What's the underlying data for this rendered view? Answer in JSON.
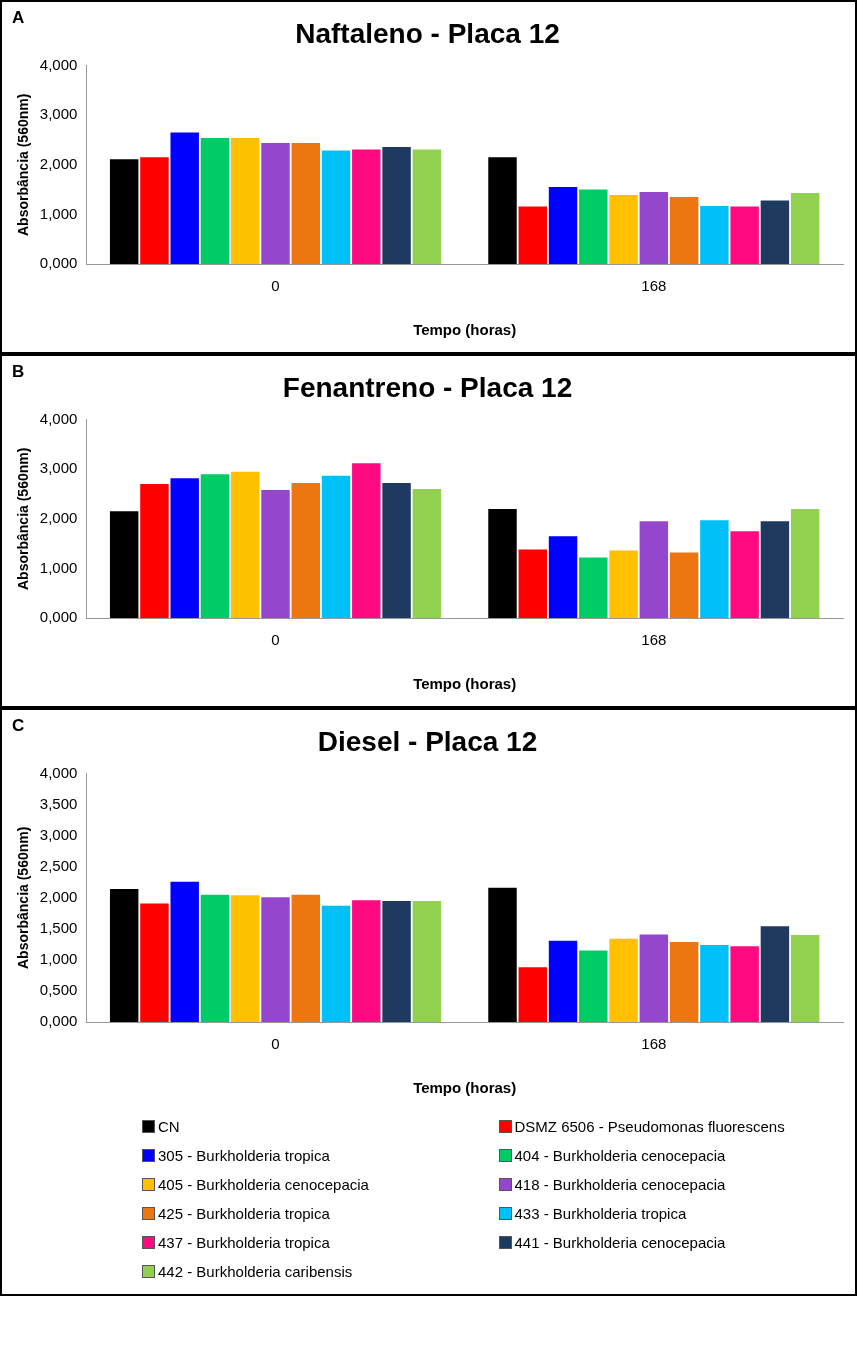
{
  "chart_data": [
    {
      "type": "bar",
      "title": "Naftaleno - Placa 12",
      "xlabel": "Tempo (horas)",
      "ylabel": "Absorbância (560nm)",
      "annotations": [
        "A"
      ],
      "categories": [
        "0",
        "168"
      ],
      "ylim": [
        0,
        4
      ],
      "yticks": [
        {
          "value": 0,
          "label": "0,000"
        },
        {
          "value": 1,
          "label": "1,000"
        },
        {
          "value": 2,
          "label": "2,000"
        },
        {
          "value": 3,
          "label": "3,000"
        },
        {
          "value": 4,
          "label": "4,000"
        }
      ],
      "grid": false,
      "series": [
        {
          "color": "#000000",
          "values": [
            2.11,
            2.15
          ]
        },
        {
          "color": "#ff0000",
          "values": [
            2.15,
            1.16
          ]
        },
        {
          "color": "#0000ff",
          "values": [
            2.65,
            1.55
          ]
        },
        {
          "color": "#00cc66",
          "values": [
            2.54,
            1.5
          ]
        },
        {
          "color": "#ffc000",
          "values": [
            2.54,
            1.39
          ]
        },
        {
          "color": "#9447cc",
          "values": [
            2.44,
            1.45
          ]
        },
        {
          "color": "#ed7610",
          "values": [
            2.44,
            1.35
          ]
        },
        {
          "color": "#00c0f8",
          "values": [
            2.29,
            1.17
          ]
        },
        {
          "color": "#ff0a80",
          "values": [
            2.31,
            1.16
          ]
        },
        {
          "color": "#1f3a60",
          "values": [
            2.36,
            1.28
          ]
        },
        {
          "color": "#92d050",
          "values": [
            2.31,
            1.43
          ]
        }
      ]
    },
    {
      "type": "bar",
      "title": "Fenantreno - Placa 12",
      "xlabel": "Tempo (horas)",
      "ylabel": "Absorbância (560nm)",
      "annotations": [
        "B"
      ],
      "categories": [
        "0",
        "168"
      ],
      "ylim": [
        0,
        4
      ],
      "yticks": [
        {
          "value": 0,
          "label": "0,000"
        },
        {
          "value": 1,
          "label": "1,000"
        },
        {
          "value": 2,
          "label": "2,000"
        },
        {
          "value": 3,
          "label": "3,000"
        },
        {
          "value": 4,
          "label": "4,000"
        }
      ],
      "grid": false,
      "series": [
        {
          "color": "#000000",
          "values": [
            2.15,
            2.2
          ]
        },
        {
          "color": "#ff0000",
          "values": [
            2.7,
            1.38
          ]
        },
        {
          "color": "#0000ff",
          "values": [
            2.82,
            1.65
          ]
        },
        {
          "color": "#00cc66",
          "values": [
            2.9,
            1.22
          ]
        },
        {
          "color": "#ffc000",
          "values": [
            2.95,
            1.36
          ]
        },
        {
          "color": "#9447cc",
          "values": [
            2.58,
            1.95
          ]
        },
        {
          "color": "#ed7610",
          "values": [
            2.72,
            1.32
          ]
        },
        {
          "color": "#00c0f8",
          "values": [
            2.87,
            1.97
          ]
        },
        {
          "color": "#ff0a80",
          "values": [
            3.12,
            1.75
          ]
        },
        {
          "color": "#1f3a60",
          "values": [
            2.72,
            1.95
          ]
        },
        {
          "color": "#92d050",
          "values": [
            2.6,
            2.2
          ]
        }
      ]
    },
    {
      "type": "bar",
      "title": "Diesel - Placa 12",
      "xlabel": "Tempo (horas)",
      "ylabel": "Absorbância (560nm)",
      "annotations": [
        "C"
      ],
      "categories": [
        "0",
        "168"
      ],
      "ylim": [
        0,
        4
      ],
      "yticks": [
        {
          "value": 0,
          "label": "0,000"
        },
        {
          "value": 0.5,
          "label": "0,500"
        },
        {
          "value": 1,
          "label": "1,000"
        },
        {
          "value": 1.5,
          "label": "1,500"
        },
        {
          "value": 2,
          "label": "2,000"
        },
        {
          "value": 2.5,
          "label": "2,500"
        },
        {
          "value": 3,
          "label": "3,000"
        },
        {
          "value": 3.5,
          "label": "3,500"
        },
        {
          "value": 4,
          "label": "4,000"
        }
      ],
      "grid": false,
      "legend": "bottom",
      "series": [
        {
          "name": "CN",
          "color": "#000000",
          "values": [
            2.14,
            2.16
          ]
        },
        {
          "name": "DSMZ 6506 - Pseudomonas fluorescens",
          "color": "#ff0000",
          "values": [
            1.91,
            0.88
          ]
        },
        {
          "name": "305 - Burkholderia tropica",
          "color": "#0000ff",
          "values": [
            2.26,
            1.31
          ]
        },
        {
          "name": "404 - Burkholderia cenocepacia",
          "color": "#00cc66",
          "values": [
            2.05,
            1.15
          ]
        },
        {
          "name": "405 - Burkholderia cenocepacia",
          "color": "#ffc000",
          "values": [
            2.04,
            1.34
          ]
        },
        {
          "name": "418 - Burkholderia cenocepacia",
          "color": "#9447cc",
          "values": [
            2.01,
            1.41
          ]
        },
        {
          "name": "425 - Burkholderia tropica",
          "color": "#ed7610",
          "values": [
            2.05,
            1.29
          ]
        },
        {
          "name": "433 - Burkholderia tropica",
          "color": "#00c0f8",
          "values": [
            1.87,
            1.24
          ]
        },
        {
          "name": "437 - Burkholderia tropica",
          "color": "#ff0a80",
          "values": [
            1.96,
            1.22
          ]
        },
        {
          "name": "441 - Burkholderia cenocepacia",
          "color": "#1f3a60",
          "values": [
            1.95,
            1.54
          ]
        },
        {
          "name": "442 - Burkholderia caribensis",
          "color": "#92d050",
          "values": [
            1.95,
            1.4
          ]
        }
      ]
    }
  ]
}
